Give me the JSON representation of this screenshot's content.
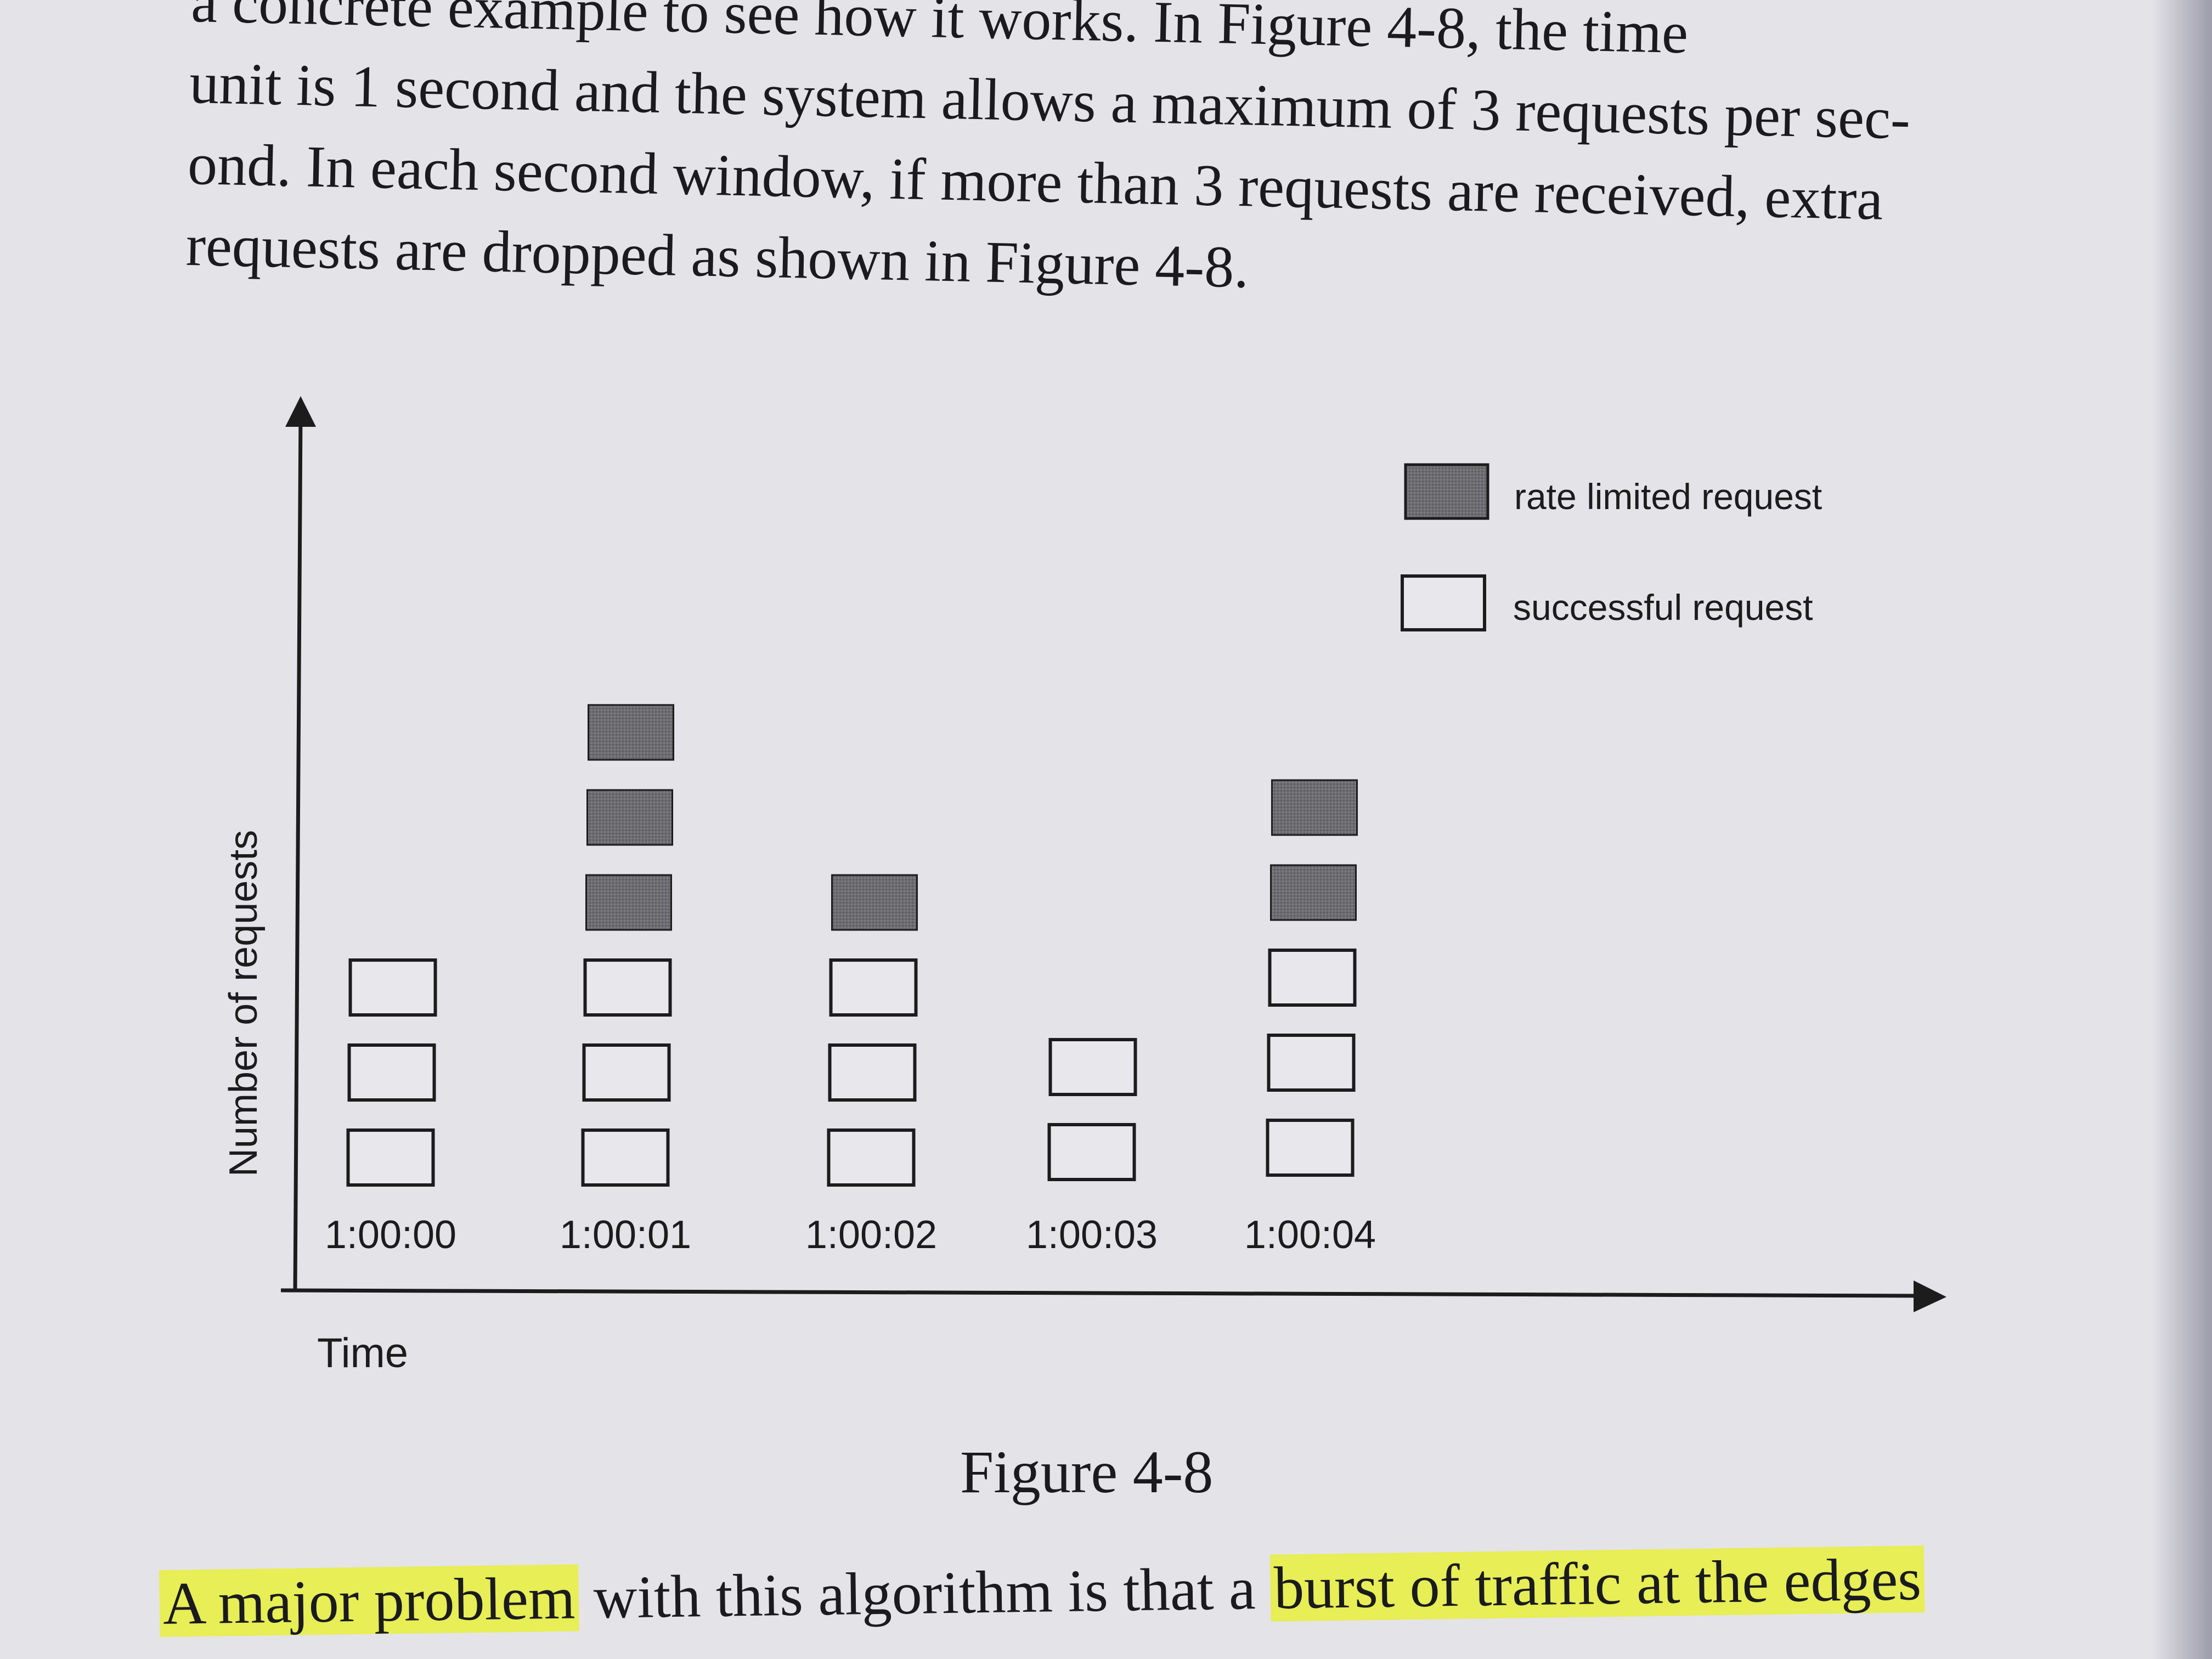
{
  "paragraph": {
    "lines": [
      "a concrete example to see how it works. In Figure 4-8, the time",
      "unit is 1 second and the system allows a maximum of 3 requests per sec-",
      "ond. In each second window, if more than 3 requests are received, extra",
      "requests are dropped as shown in Figure 4-8."
    ]
  },
  "figure": {
    "caption": "Figure 4-8",
    "legend": {
      "rate_limited": "rate limited request",
      "successful": "successful request"
    },
    "colors": {
      "rate_limited_fill": "#6b6b6e",
      "successful_fill": "#e8e8ec",
      "stroke": "#1c1c1c"
    }
  },
  "chart_data": {
    "type": "bar",
    "stacked": true,
    "categories": [
      "1:00:00",
      "1:00:01",
      "1:00:02",
      "1:00:03",
      "1:00:04"
    ],
    "series": [
      {
        "name": "successful request",
        "values": [
          3,
          3,
          3,
          2,
          3
        ]
      },
      {
        "name": "rate limited request",
        "values": [
          0,
          3,
          1,
          0,
          2
        ]
      }
    ],
    "title": "",
    "xlabel": "Time",
    "ylabel": "Number of requests",
    "legend_position": "top-right",
    "grid": false
  },
  "bottom_text": {
    "part1": "A major problem",
    "part2": " with this algorithm is that a ",
    "part3": "burst of traffic at the edges"
  }
}
